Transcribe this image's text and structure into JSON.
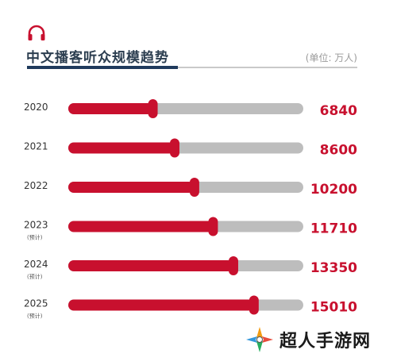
{
  "header": {
    "title": "中文播客听众规模趋势",
    "unit": "(单位: 万人)",
    "icon": "headphones-icon",
    "accent_color": "#c8102e",
    "title_color": "#2c3e50"
  },
  "chart_data": {
    "type": "bar",
    "orientation": "horizontal",
    "title": "中文播客听众规模趋势",
    "unit": "(单位: 万人)",
    "categories": [
      "2020",
      "2021",
      "2022",
      "2023",
      "2024",
      "2025"
    ],
    "notes": [
      "",
      "",
      "",
      "(预计)",
      "(预计)",
      "(预计)"
    ],
    "values": [
      6840,
      8600,
      10200,
      11710,
      13350,
      15010
    ],
    "bar_color": "#c8102e",
    "track_color": "#bdbdbd",
    "label_color": "#c8102e",
    "grid": false
  },
  "watermark": {
    "text": "超人手游网",
    "icon": "game-logo-icon"
  }
}
